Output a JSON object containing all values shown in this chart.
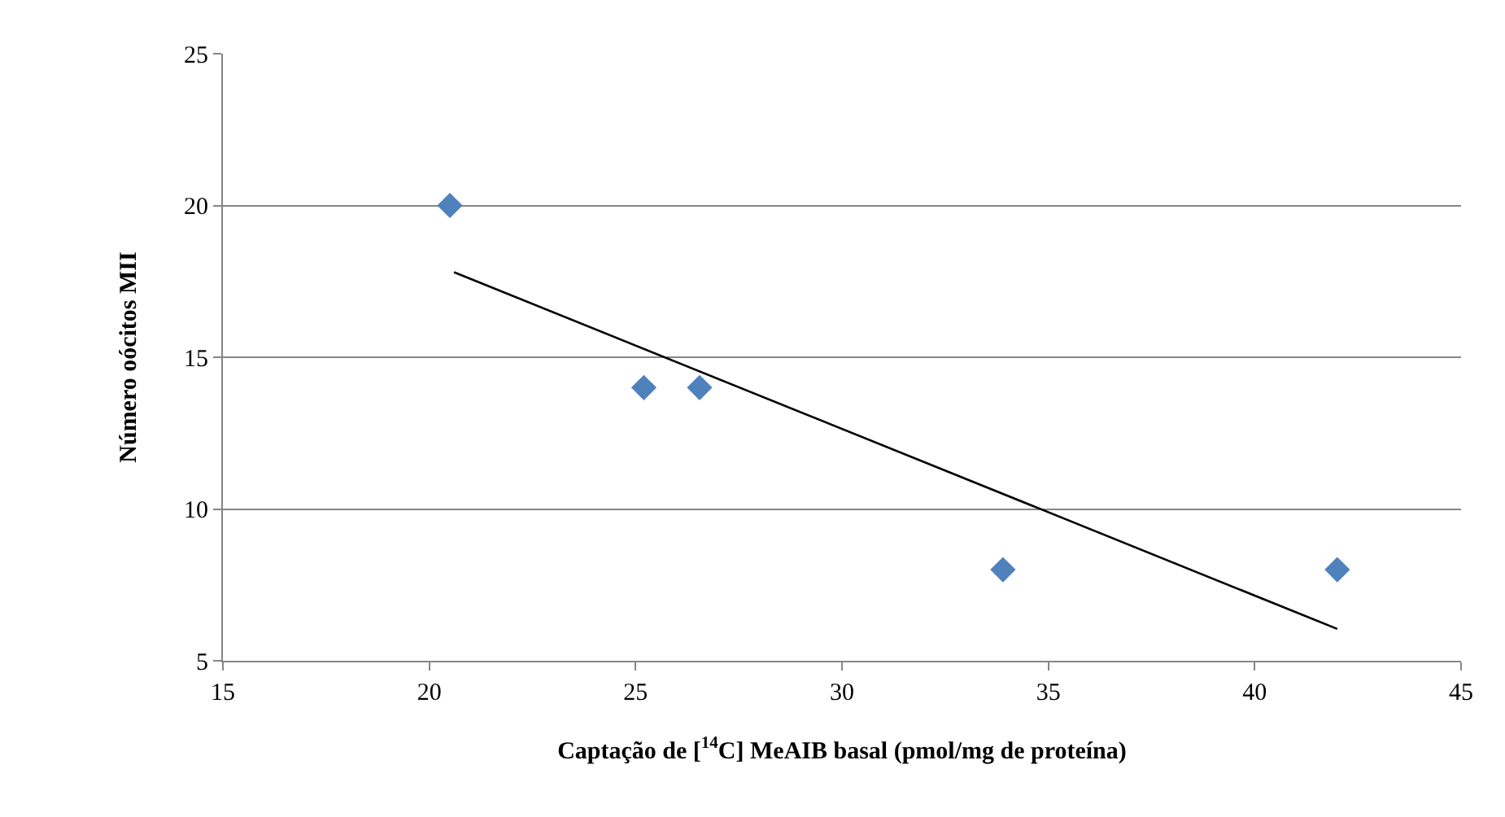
{
  "chart_data": {
    "type": "scatter",
    "xlabel": "Captação de [$^{14}$C] MeAIB basal (pmol/mg de proteína)",
    "ylabel": "Número oócitos MII",
    "series": [
      {
        "color": "#4f81bd",
        "marker": "diamond",
        "x": [
          20.5,
          25.2,
          26.55,
          33.9,
          42.0
        ],
        "values": [
          20,
          14,
          14,
          8,
          8
        ]
      },
      {
        "type": "line",
        "color": "#000000",
        "marker": "none",
        "x": [
          20.6,
          42.0
        ],
        "values": [
          17.8,
          6.05
        ]
      }
    ],
    "xlim": [
      15,
      45
    ],
    "xticks": [
      15,
      20,
      25,
      30,
      35,
      40,
      45
    ],
    "ylim": [
      5,
      25
    ],
    "yticks": [
      5,
      10,
      15,
      20,
      25
    ],
    "grid": "y"
  }
}
